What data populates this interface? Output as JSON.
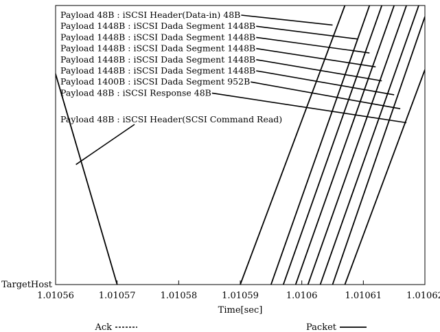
{
  "chart_data": {
    "type": "line",
    "xlabel": "Time[sec]",
    "ylabel": "TargetHost",
    "xlim": [
      1.01056,
      1.01062
    ],
    "ylim": [
      0,
      1
    ],
    "x_ticks": [
      "1.01056",
      "1.01057",
      "1.01058",
      "1.01059",
      "1.0106",
      "1.01061",
      "1.01062"
    ],
    "grid": false,
    "legend": {
      "placement": "bottom",
      "entries": [
        {
          "label": "Ack",
          "style": "dashed"
        },
        {
          "label": "Packet",
          "style": "solid"
        }
      ]
    },
    "series": [
      {
        "name": "Packet",
        "segments": [
          {
            "x": [
              1.010559,
              1.01057
            ],
            "y": [
              0.83,
              0.0
            ]
          },
          {
            "x": [
              1.01059,
              1.010607
            ],
            "y": [
              0.0,
              1.0
            ]
          },
          {
            "x": [
              1.010595,
              1.010611
            ],
            "y": [
              0.0,
              1.0
            ]
          },
          {
            "x": [
              1.010597,
              1.010613
            ],
            "y": [
              0.0,
              1.0
            ]
          },
          {
            "x": [
              1.010599,
              1.010615
            ],
            "y": [
              0.0,
              1.0
            ]
          },
          {
            "x": [
              1.010601,
              1.010617
            ],
            "y": [
              0.0,
              1.0
            ]
          },
          {
            "x": [
              1.010603,
              1.010619
            ],
            "y": [
              0.0,
              1.0
            ]
          },
          {
            "x": [
              1.010605,
              1.01062
            ],
            "y": [
              0.0,
              0.96
            ]
          },
          {
            "x": [
              1.010607,
              1.01062
            ],
            "y": [
              0.0,
              0.77
            ]
          }
        ]
      }
    ],
    "annotations": [
      {
        "label": "Payload 48B  :  iSCSI Header(Data-in) 48B",
        "x": 1.010605,
        "y": 0.93
      },
      {
        "label": "Payload 1448B  :  iSCSI Dada Segment 1448B",
        "x": 1.010609,
        "y": 0.88
      },
      {
        "label": "Payload 1448B  :  iSCSI Dada Segment 1448B",
        "x": 1.010611,
        "y": 0.83
      },
      {
        "label": "Payload 1448B  :  iSCSI Dada Segment 1448B",
        "x": 1.010612,
        "y": 0.78
      },
      {
        "label": "Payload 1448B  :  iSCSI Dada Segment 1448B",
        "x": 1.010613,
        "y": 0.73
      },
      {
        "label": "Payload 1448B  :  iSCSI Dada Segment 1448B",
        "x": 1.010615,
        "y": 0.68
      },
      {
        "label": "Payload 1400B  :  iSCSI Dada Segment 952B",
        "x": 1.010616,
        "y": 0.63
      },
      {
        "label": "Payload 48B  :  iSCSI Response 48B",
        "x": 1.010617,
        "y": 0.58
      },
      {
        "label": "Payload 48B : iSCSI Header(SCSI Command Read)",
        "x": 1.0105633,
        "y": 0.43
      }
    ]
  }
}
